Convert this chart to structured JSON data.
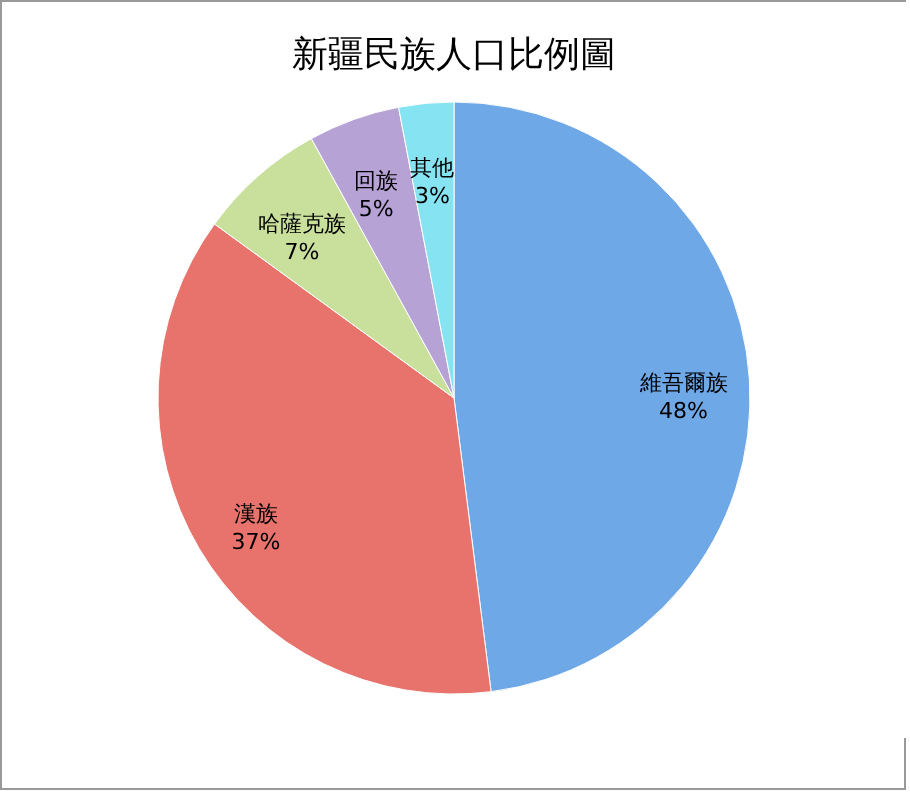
{
  "chart_data": {
    "type": "pie",
    "title": "新疆民族人口比例圖",
    "categories": [
      "維吾爾族",
      "漢族",
      "哈薩克族",
      "回族",
      "其他"
    ],
    "values": [
      48,
      37,
      7,
      5,
      3
    ],
    "colors": [
      "#6fa8e6",
      "#e8736c",
      "#c9df9c",
      "#b7a2d6",
      "#86e3f2"
    ],
    "value_labels": [
      "48%",
      "37%",
      "7%",
      "5%",
      "3%"
    ],
    "legend": false
  }
}
